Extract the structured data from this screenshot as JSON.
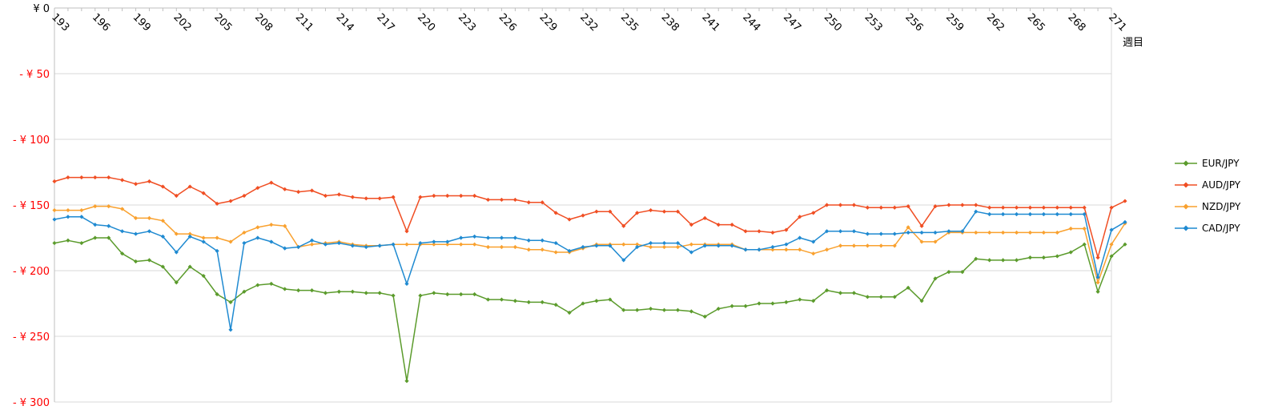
{
  "chart_data": {
    "type": "line",
    "x_unit_label": "週目",
    "x_start": 193,
    "x_end": 271,
    "x_tick_labels": [
      "193",
      "196",
      "199",
      "202",
      "205",
      "208",
      "211",
      "214",
      "217",
      "220",
      "223",
      "226",
      "229",
      "232",
      "235",
      "238",
      "241",
      "244",
      "247",
      "250",
      "253",
      "256",
      "259",
      "262",
      "265",
      "268",
      "271"
    ],
    "y_range": [
      -300,
      0
    ],
    "y_tick_values": [
      0,
      -50,
      -100,
      -150,
      -200,
      -250,
      -300
    ],
    "y_tick_labels": [
      "¥ 0",
      "- ¥ 50",
      "- ¥ 100",
      "- ¥ 150",
      "- ¥ 200",
      "- ¥ 250",
      "- ¥ 300"
    ],
    "grid": true,
    "legend_position": "right",
    "series": [
      {
        "name": "EUR/JPY",
        "color": "#5b9b2c",
        "values": [
          -179,
          -177,
          -179,
          -175,
          -175,
          -187,
          -193,
          -192,
          -197,
          -209,
          -197,
          -204,
          -218,
          -224,
          -216,
          -211,
          -210,
          -214,
          -215,
          -215,
          -217,
          -216,
          -216,
          -217,
          -217,
          -219,
          -284,
          -219,
          -217,
          -218,
          -218,
          -218,
          -222,
          -222,
          -223,
          -224,
          -224,
          -226,
          -232,
          -225,
          -223,
          -222,
          -230,
          -230,
          -229,
          -230,
          -230,
          -231,
          -235,
          -229,
          -227,
          -227,
          -225,
          -225,
          -224,
          -222,
          -223,
          -215,
          -217,
          -217,
          -220,
          -220,
          -220,
          -213,
          -223,
          -206,
          -201,
          -201,
          -191,
          -192,
          -192,
          -192,
          -190,
          -190,
          -189,
          -186,
          -180,
          -216,
          -189,
          -180
        ]
      },
      {
        "name": "AUD/JPY",
        "color": "#f04e23",
        "values": [
          -132,
          -129,
          -129,
          -129,
          -129,
          -131,
          -134,
          -132,
          -136,
          -143,
          -136,
          -141,
          -149,
          -147,
          -143,
          -137,
          -133,
          -138,
          -140,
          -139,
          -143,
          -142,
          -144,
          -145,
          -145,
          -144,
          -170,
          -144,
          -143,
          -143,
          -143,
          -143,
          -146,
          -146,
          -146,
          -148,
          -148,
          -156,
          -161,
          -158,
          -155,
          -155,
          -166,
          -156,
          -154,
          -155,
          -155,
          -165,
          -160,
          -165,
          -165,
          -170,
          -170,
          -171,
          -169,
          -159,
          -156,
          -150,
          -150,
          -150,
          -152,
          -152,
          -152,
          -151,
          -166,
          -151,
          -150,
          -150,
          -150,
          -152,
          -152,
          -152,
          -152,
          -152,
          -152,
          -152,
          -152,
          -190,
          -152,
          -147
        ]
      },
      {
        "name": "NZD/JPY",
        "color": "#f9a12f",
        "values": [
          -154,
          -154,
          -154,
          -151,
          -151,
          -153,
          -160,
          -160,
          -162,
          -172,
          -172,
          -175,
          -175,
          -178,
          -171,
          -167,
          -165,
          -166,
          -182,
          -180,
          -179,
          -178,
          -180,
          -181,
          -181,
          -180,
          -180,
          -180,
          -180,
          -180,
          -180,
          -180,
          -182,
          -182,
          -182,
          -184,
          -184,
          -186,
          -186,
          -183,
          -180,
          -180,
          -180,
          -180,
          -182,
          -182,
          -182,
          -180,
          -180,
          -180,
          -180,
          -184,
          -184,
          -184,
          -184,
          -184,
          -187,
          -184,
          -181,
          -181,
          -181,
          -181,
          -181,
          -167,
          -178,
          -178,
          -171,
          -171,
          -171,
          -171,
          -171,
          -171,
          -171,
          -171,
          -171,
          -168,
          -168,
          -209,
          -180,
          -164
        ]
      },
      {
        "name": "CAD/JPY",
        "color": "#1f8ad1",
        "values": [
          -161,
          -159,
          -159,
          -165,
          -166,
          -170,
          -172,
          -170,
          -174,
          -186,
          -174,
          -178,
          -185,
          -245,
          -179,
          -175,
          -178,
          -183,
          -182,
          -177,
          -180,
          -179,
          -181,
          -182,
          -181,
          -180,
          -210,
          -179,
          -178,
          -178,
          -175,
          -174,
          -175,
          -175,
          -175,
          -177,
          -177,
          -179,
          -185,
          -182,
          -181,
          -181,
          -192,
          -182,
          -179,
          -179,
          -179,
          -186,
          -181,
          -181,
          -181,
          -184,
          -184,
          -182,
          -180,
          -175,
          -178,
          -170,
          -170,
          -170,
          -172,
          -172,
          -172,
          -171,
          -171,
          -171,
          -170,
          -170,
          -155,
          -157,
          -157,
          -157,
          -157,
          -157,
          -157,
          -157,
          -157,
          -205,
          -169,
          -163
        ]
      }
    ]
  }
}
